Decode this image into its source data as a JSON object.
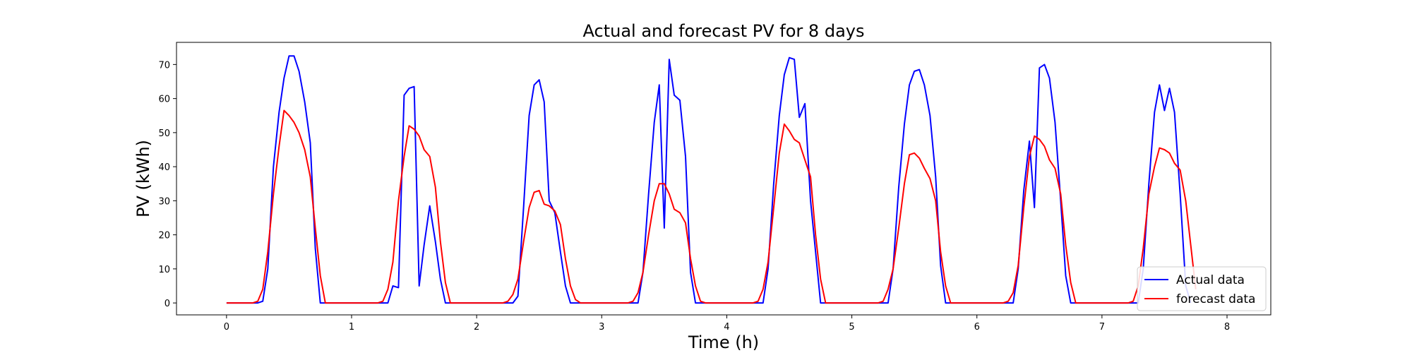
{
  "chart_data": {
    "type": "line",
    "title": "Actual and forecast PV for 8 days",
    "xlabel": "Time (h)",
    "ylabel": "PV (kWh)",
    "xlim": [
      -0.4,
      8.35
    ],
    "ylim": [
      -3.5,
      76.5
    ],
    "xticks": [
      0,
      1,
      2,
      3,
      4,
      5,
      6,
      7,
      8
    ],
    "yticks": [
      0,
      10,
      20,
      30,
      40,
      50,
      60,
      70
    ],
    "grid": false,
    "legend_position": "lower-right",
    "series": [
      {
        "name": "Actual data",
        "color": "#0000ff",
        "points": [
          [
            0,
            0
          ],
          [
            0.25,
            0
          ],
          [
            0.29,
            0.5
          ],
          [
            0.33,
            10
          ],
          [
            0.375,
            40
          ],
          [
            0.42,
            56
          ],
          [
            0.46,
            66
          ],
          [
            0.5,
            72.5
          ],
          [
            0.54,
            72.5
          ],
          [
            0.58,
            68
          ],
          [
            0.625,
            59
          ],
          [
            0.67,
            47
          ],
          [
            0.71,
            16
          ],
          [
            0.75,
            0
          ],
          [
            1.0,
            0
          ],
          [
            1.29,
            0
          ],
          [
            1.33,
            5
          ],
          [
            1.375,
            4.5
          ],
          [
            1.42,
            61
          ],
          [
            1.46,
            63
          ],
          [
            1.5,
            63.5
          ],
          [
            1.54,
            5
          ],
          [
            1.58,
            17
          ],
          [
            1.625,
            28.5
          ],
          [
            1.67,
            18
          ],
          [
            1.71,
            7
          ],
          [
            1.75,
            0
          ],
          [
            2.0,
            0
          ],
          [
            2.29,
            0
          ],
          [
            2.33,
            2
          ],
          [
            2.375,
            28
          ],
          [
            2.42,
            55
          ],
          [
            2.46,
            64
          ],
          [
            2.5,
            65.5
          ],
          [
            2.54,
            59
          ],
          [
            2.58,
            30
          ],
          [
            2.625,
            26.5
          ],
          [
            2.67,
            15
          ],
          [
            2.71,
            5
          ],
          [
            2.75,
            0
          ],
          [
            3.0,
            0
          ],
          [
            3.29,
            0
          ],
          [
            3.33,
            9
          ],
          [
            3.375,
            32
          ],
          [
            3.42,
            53
          ],
          [
            3.46,
            64
          ],
          [
            3.5,
            22
          ],
          [
            3.54,
            71.5
          ],
          [
            3.58,
            61
          ],
          [
            3.625,
            59.5
          ],
          [
            3.67,
            43
          ],
          [
            3.71,
            9
          ],
          [
            3.75,
            0
          ],
          [
            4.0,
            0
          ],
          [
            4.29,
            0
          ],
          [
            4.33,
            10
          ],
          [
            4.375,
            35
          ],
          [
            4.42,
            55
          ],
          [
            4.46,
            67
          ],
          [
            4.5,
            72
          ],
          [
            4.54,
            71.5
          ],
          [
            4.58,
            54.5
          ],
          [
            4.625,
            58.5
          ],
          [
            4.67,
            30
          ],
          [
            4.71,
            15
          ],
          [
            4.75,
            0
          ],
          [
            5.0,
            0
          ],
          [
            5.29,
            0
          ],
          [
            5.33,
            10
          ],
          [
            5.375,
            34
          ],
          [
            5.42,
            52.5
          ],
          [
            5.46,
            64
          ],
          [
            5.5,
            68
          ],
          [
            5.54,
            68.5
          ],
          [
            5.58,
            64
          ],
          [
            5.625,
            55
          ],
          [
            5.67,
            37
          ],
          [
            5.71,
            11
          ],
          [
            5.75,
            0
          ],
          [
            6.0,
            0
          ],
          [
            6.29,
            0
          ],
          [
            6.33,
            10
          ],
          [
            6.375,
            33
          ],
          [
            6.42,
            47.5
          ],
          [
            6.46,
            28
          ],
          [
            6.5,
            69
          ],
          [
            6.54,
            70
          ],
          [
            6.58,
            66
          ],
          [
            6.625,
            53
          ],
          [
            6.67,
            30
          ],
          [
            6.71,
            8
          ],
          [
            6.75,
            0
          ],
          [
            7.0,
            0
          ],
          [
            7.29,
            0
          ],
          [
            7.33,
            10
          ],
          [
            7.375,
            35
          ],
          [
            7.42,
            56
          ],
          [
            7.46,
            64
          ],
          [
            7.5,
            56.5
          ],
          [
            7.54,
            63
          ],
          [
            7.58,
            56
          ],
          [
            7.625,
            32
          ],
          [
            7.67,
            5
          ],
          [
            7.71,
            0
          ]
        ]
      },
      {
        "name": "forecast data",
        "color": "#ff0000",
        "points": [
          [
            0,
            0
          ],
          [
            0.21,
            0
          ],
          [
            0.25,
            0.5
          ],
          [
            0.29,
            4
          ],
          [
            0.33,
            15
          ],
          [
            0.375,
            32
          ],
          [
            0.42,
            46
          ],
          [
            0.46,
            56.5
          ],
          [
            0.5,
            55
          ],
          [
            0.54,
            53
          ],
          [
            0.58,
            50
          ],
          [
            0.625,
            45
          ],
          [
            0.67,
            37
          ],
          [
            0.71,
            22
          ],
          [
            0.75,
            8
          ],
          [
            0.79,
            0
          ],
          [
            1.0,
            0
          ],
          [
            1.21,
            0
          ],
          [
            1.25,
            0.5
          ],
          [
            1.29,
            4
          ],
          [
            1.33,
            12
          ],
          [
            1.375,
            30
          ],
          [
            1.42,
            43
          ],
          [
            1.46,
            52
          ],
          [
            1.5,
            51
          ],
          [
            1.54,
            49
          ],
          [
            1.58,
            45
          ],
          [
            1.625,
            43
          ],
          [
            1.67,
            34
          ],
          [
            1.71,
            18
          ],
          [
            1.75,
            6
          ],
          [
            1.79,
            0
          ],
          [
            2.0,
            0
          ],
          [
            2.21,
            0
          ],
          [
            2.25,
            0.5
          ],
          [
            2.29,
            2.5
          ],
          [
            2.33,
            7
          ],
          [
            2.375,
            18
          ],
          [
            2.42,
            28
          ],
          [
            2.46,
            32.5
          ],
          [
            2.5,
            33
          ],
          [
            2.54,
            29
          ],
          [
            2.58,
            28.5
          ],
          [
            2.625,
            27
          ],
          [
            2.67,
            23
          ],
          [
            2.71,
            13
          ],
          [
            2.75,
            5
          ],
          [
            2.79,
            1
          ],
          [
            2.83,
            0
          ],
          [
            3.0,
            0
          ],
          [
            3.21,
            0
          ],
          [
            3.25,
            0.5
          ],
          [
            3.29,
            3
          ],
          [
            3.33,
            9
          ],
          [
            3.375,
            20
          ],
          [
            3.42,
            30
          ],
          [
            3.46,
            35
          ],
          [
            3.5,
            35
          ],
          [
            3.54,
            32
          ],
          [
            3.58,
            27.5
          ],
          [
            3.625,
            26.5
          ],
          [
            3.67,
            23.5
          ],
          [
            3.71,
            13
          ],
          [
            3.75,
            5
          ],
          [
            3.79,
            0.5
          ],
          [
            3.83,
            0
          ],
          [
            4.0,
            0
          ],
          [
            4.21,
            0
          ],
          [
            4.25,
            0.5
          ],
          [
            4.29,
            4
          ],
          [
            4.33,
            12
          ],
          [
            4.375,
            28
          ],
          [
            4.42,
            44
          ],
          [
            4.46,
            52.5
          ],
          [
            4.5,
            50.5
          ],
          [
            4.54,
            48
          ],
          [
            4.58,
            47
          ],
          [
            4.625,
            42
          ],
          [
            4.67,
            37
          ],
          [
            4.71,
            20
          ],
          [
            4.75,
            7
          ],
          [
            4.79,
            0
          ],
          [
            5.0,
            0
          ],
          [
            5.21,
            0
          ],
          [
            5.25,
            0.5
          ],
          [
            5.29,
            4
          ],
          [
            5.33,
            10
          ],
          [
            5.375,
            22
          ],
          [
            5.42,
            35
          ],
          [
            5.46,
            43.5
          ],
          [
            5.5,
            44
          ],
          [
            5.54,
            42.5
          ],
          [
            5.58,
            39.5
          ],
          [
            5.625,
            36.5
          ],
          [
            5.67,
            30
          ],
          [
            5.71,
            15
          ],
          [
            5.75,
            5
          ],
          [
            5.79,
            0
          ],
          [
            6.0,
            0
          ],
          [
            6.21,
            0
          ],
          [
            6.25,
            0.5
          ],
          [
            6.29,
            3
          ],
          [
            6.33,
            11
          ],
          [
            6.375,
            28
          ],
          [
            6.42,
            43
          ],
          [
            6.46,
            49
          ],
          [
            6.5,
            48
          ],
          [
            6.54,
            46
          ],
          [
            6.58,
            42
          ],
          [
            6.625,
            39.5
          ],
          [
            6.67,
            32
          ],
          [
            6.71,
            17
          ],
          [
            6.75,
            6
          ],
          [
            6.79,
            0
          ],
          [
            7.0,
            0
          ],
          [
            7.21,
            0
          ],
          [
            7.25,
            0.5
          ],
          [
            7.29,
            5
          ],
          [
            7.33,
            16
          ],
          [
            7.375,
            32
          ],
          [
            7.42,
            40
          ],
          [
            7.46,
            45.5
          ],
          [
            7.5,
            45
          ],
          [
            7.54,
            44
          ],
          [
            7.58,
            41
          ],
          [
            7.625,
            39
          ],
          [
            7.67,
            30
          ],
          [
            7.71,
            17
          ],
          [
            7.75,
            4
          ]
        ]
      }
    ]
  }
}
